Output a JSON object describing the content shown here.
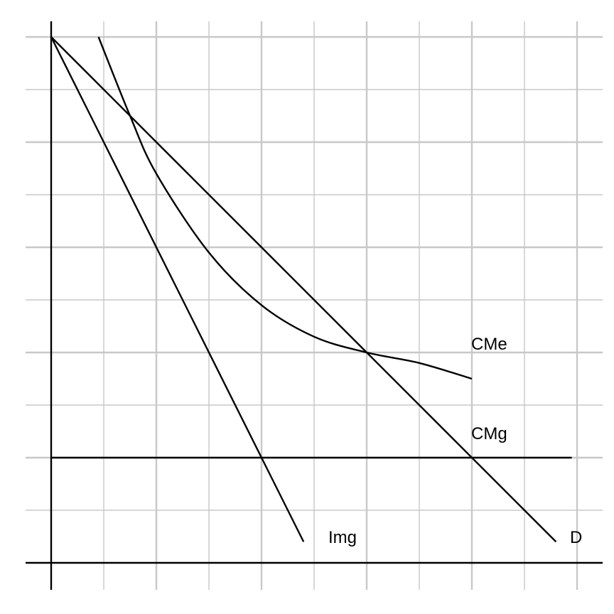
{
  "chart_data": {
    "type": "line",
    "title": "",
    "xlabel": "",
    "ylabel": "",
    "xlim": [
      -0.5,
      10.5
    ],
    "ylim": [
      -0.5,
      10
    ],
    "grid": true,
    "legend": "none",
    "series": [
      {
        "name": "D",
        "x": [
          0,
          9.6
        ],
        "y": [
          10,
          0.4
        ]
      },
      {
        "name": "Img",
        "x": [
          0,
          4.8
        ],
        "y": [
          10,
          0.4
        ]
      },
      {
        "name": "CMe",
        "x": [
          0.9,
          1.5,
          2.0,
          3.0,
          4.0,
          5.0,
          6.0,
          7.0,
          8.0
        ],
        "y": [
          10.0,
          8.5,
          7.4,
          5.9,
          4.9,
          4.3,
          4.0,
          3.8,
          3.5
        ]
      },
      {
        "name": "CMg",
        "x": [
          0,
          9.9
        ],
        "y": [
          2,
          2
        ]
      }
    ]
  }
}
